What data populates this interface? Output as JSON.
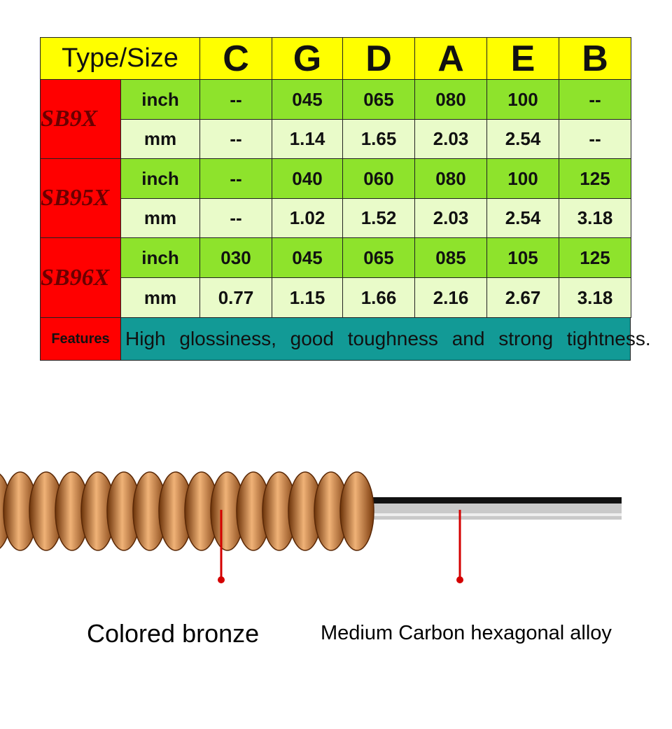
{
  "table": {
    "header": [
      "Type/Size",
      "C",
      "G",
      "D",
      "A",
      "E",
      "B"
    ],
    "groups": [
      {
        "name": "SB9X",
        "rows": [
          {
            "unit": "inch",
            "values": [
              "--",
              "045",
              "065",
              "080",
              "100",
              "--"
            ]
          },
          {
            "unit": "mm",
            "values": [
              "--",
              "1.14",
              "1.65",
              "2.03",
              "2.54",
              "--"
            ]
          }
        ]
      },
      {
        "name": "SB95X",
        "rows": [
          {
            "unit": "inch",
            "values": [
              "--",
              "040",
              "060",
              "080",
              "100",
              "125"
            ]
          },
          {
            "unit": "mm",
            "values": [
              "--",
              "1.02",
              "1.52",
              "2.03",
              "2.54",
              "3.18"
            ]
          }
        ]
      },
      {
        "name": "SB96X",
        "rows": [
          {
            "unit": "inch",
            "values": [
              "030",
              "045",
              "065",
              "085",
              "105",
              "125"
            ]
          },
          {
            "unit": "mm",
            "values": [
              "0.77",
              "1.15",
              "1.66",
              "2.16",
              "2.67",
              "3.18"
            ]
          }
        ]
      }
    ],
    "features": {
      "label": "Features",
      "text": "High glossiness, good toughness and strong tightness."
    }
  },
  "diagram": {
    "labels": [
      "Colored bronze",
      "Medium Carbon hexagonal alloy"
    ]
  }
}
